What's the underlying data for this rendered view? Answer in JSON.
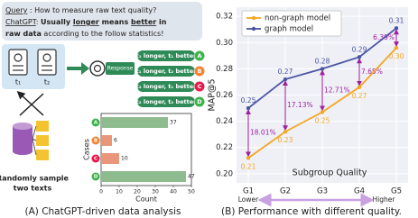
{
  "diagram": {
    "query_label": "Query",
    "query_text": " : How to measure  raw text quality?",
    "reply_label": "ChatGPT",
    "reply_parts": [
      ": ",
      "Usually ",
      "longer",
      " means ",
      "better",
      " in"
    ],
    "reply_line2_parts": [
      "raw data",
      " according to the follow statistics!"
    ],
    "doc_labels": [
      "t₁",
      "t₂"
    ],
    "response": "Response",
    "outcomes": [
      {
        "letter": "A",
        "text": "t₁ longer, t₁ better",
        "color": "#3cb44b"
      },
      {
        "letter": "B",
        "text": "t₁ longer, t₂ better",
        "color": "#f58231"
      },
      {
        "letter": "C",
        "text": "t₂ longer, t₁ better",
        "color": "#e6194b"
      },
      {
        "letter": "D",
        "text": "t₂ longer, t₂ better",
        "color": "#3cb44b"
      }
    ],
    "sample_caption": [
      "Randomly sample",
      "two texts"
    ]
  },
  "captions": [
    "(A)  ChatGPT-driven data analysis",
    "(B) Performance with different quality."
  ],
  "chart_data": [
    {
      "type": "bar",
      "orientation": "horizontal",
      "categories": [
        "A",
        "B",
        "C",
        "D"
      ],
      "values": [
        37,
        6,
        10,
        47
      ],
      "colors": [
        "#8fbc8f",
        "#e9967a",
        "#e9967a",
        "#8fbc8f"
      ],
      "marker_colors": [
        "#3cb44b",
        "#f58231",
        "#e6194b",
        "#3cb44b"
      ],
      "xlim": [
        0,
        50
      ],
      "xticks": [
        0,
        10,
        20,
        30,
        40,
        50
      ],
      "xlabel": "Count",
      "ylabel": "Cases"
    },
    {
      "type": "line",
      "categories": [
        "G1",
        "G2",
        "G3",
        "G4",
        "G5"
      ],
      "series": [
        {
          "name": "non-graph model",
          "color": "#f5a623",
          "values": [
            0.212,
            0.232,
            0.247,
            0.266,
            0.296
          ],
          "value_labels": [
            "0.21",
            "0.23",
            "0.25",
            "0.27",
            "0.30"
          ]
        },
        {
          "name": "graph model",
          "color": "#4a55a2",
          "values": [
            0.25,
            0.272,
            0.28,
            0.289,
            0.311
          ],
          "value_labels": [
            "0.25",
            "0.27",
            "0.28",
            "0.29",
            "0.31"
          ]
        }
      ],
      "annotations": [
        "18.01%",
        "17.13%",
        "12.71%",
        "7.65%",
        "6.39%"
      ],
      "annotation_color": "#a020a0",
      "ylim": [
        0.193,
        0.327
      ],
      "yticks": [
        {
          "value": 0.2,
          "label": "0.20"
        },
        {
          "value": 0.22,
          "label": "0.22"
        },
        {
          "value": 0.24,
          "label": "0.24"
        },
        {
          "value": 0.26,
          "label": "0.26"
        },
        {
          "value": 0.28,
          "label": "0.28"
        },
        {
          "value": 0.3,
          "label": "0.30"
        },
        {
          "value": 0.32,
          "label": "0.32"
        }
      ],
      "ylabel": "MAP@5",
      "xlabel": "Subgroup Quality",
      "grid": true,
      "legend": "upper left",
      "range_labels": [
        "Lower",
        "Higher"
      ]
    }
  ]
}
